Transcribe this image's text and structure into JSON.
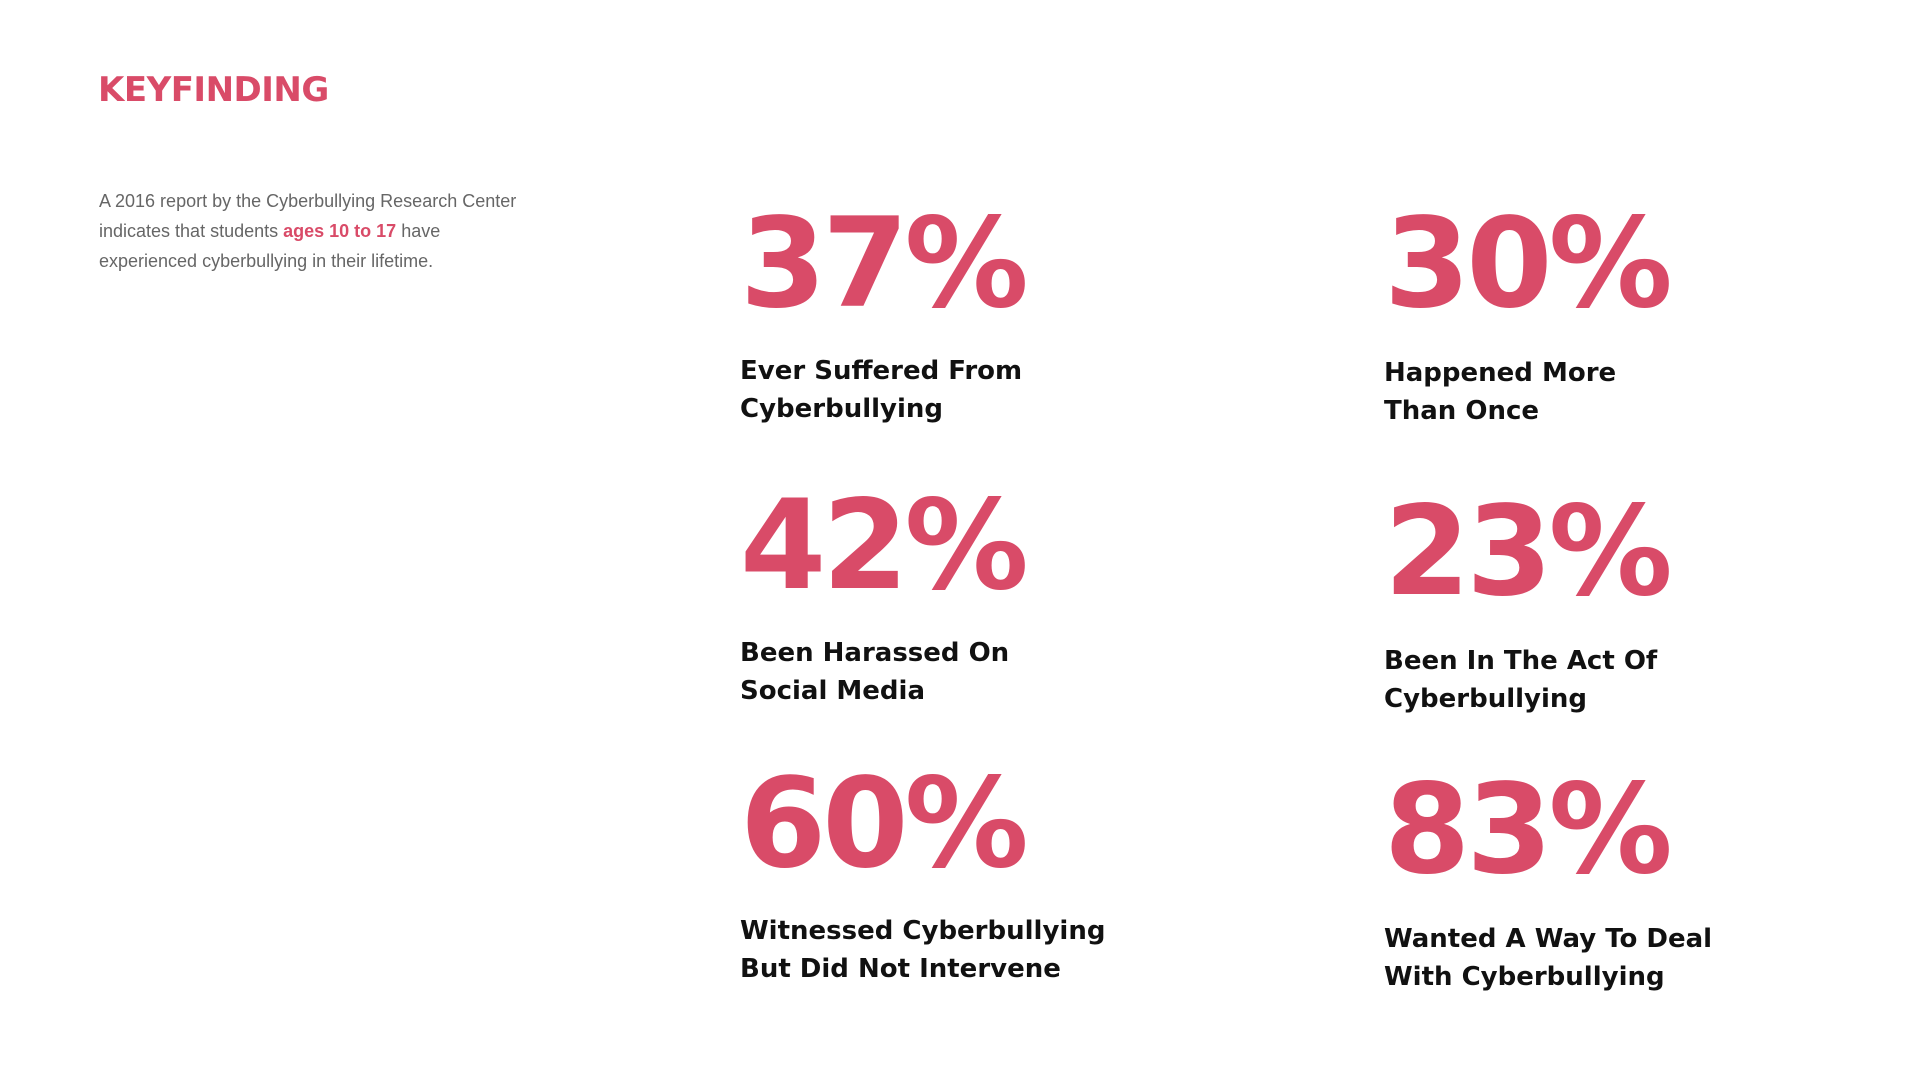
{
  "header": {
    "title": "KEYFINDING"
  },
  "intro": {
    "text_before": "A 2016 report by the Cyberbullying Research Center indicates that students ",
    "highlight": "ages 10 to 17",
    "text_after": " have experienced cyberbullying in their lifetime."
  },
  "colors": {
    "accent": "#d94b68",
    "body_text": "#666666",
    "label_text": "#111111",
    "background": "#ffffff"
  },
  "stats": [
    {
      "value": "37%",
      "line1": "Ever Suffered From",
      "line2": "Cyberbullying"
    },
    {
      "value": "30%",
      "line1": "Happened More",
      "line2": "Than Once"
    },
    {
      "value": "42%",
      "line1": "Been Harassed On",
      "line2": "Social Media"
    },
    {
      "value": "23%",
      "line1": "Been In The Act Of",
      "line2": "Cyberbullying"
    },
    {
      "value": "60%",
      "line1": "Witnessed Cyberbullying",
      "line2": "But Did Not Intervene"
    },
    {
      "value": "83%",
      "line1": "Wanted A Way To Deal",
      "line2": "With Cyberbullying"
    }
  ]
}
